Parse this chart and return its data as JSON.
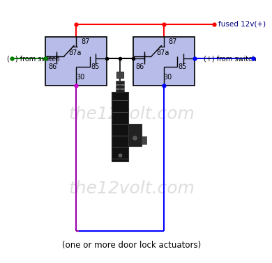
{
  "bg_color": "#ffffff",
  "relay_fill": "#b8bce8",
  "relay_edge": "#000000",
  "watermark": "the12volt.com",
  "caption": "(one or more door lock actuators)",
  "fused_label": "fused 12v(+)",
  "switch_left": "(+) from switch",
  "switch_right": "(+) from switch",
  "r1x": 0.155,
  "r1y": 0.685,
  "r1w": 0.245,
  "r1h": 0.195,
  "r2x": 0.505,
  "r2y": 0.685,
  "r2w": 0.245,
  "r2h": 0.195
}
